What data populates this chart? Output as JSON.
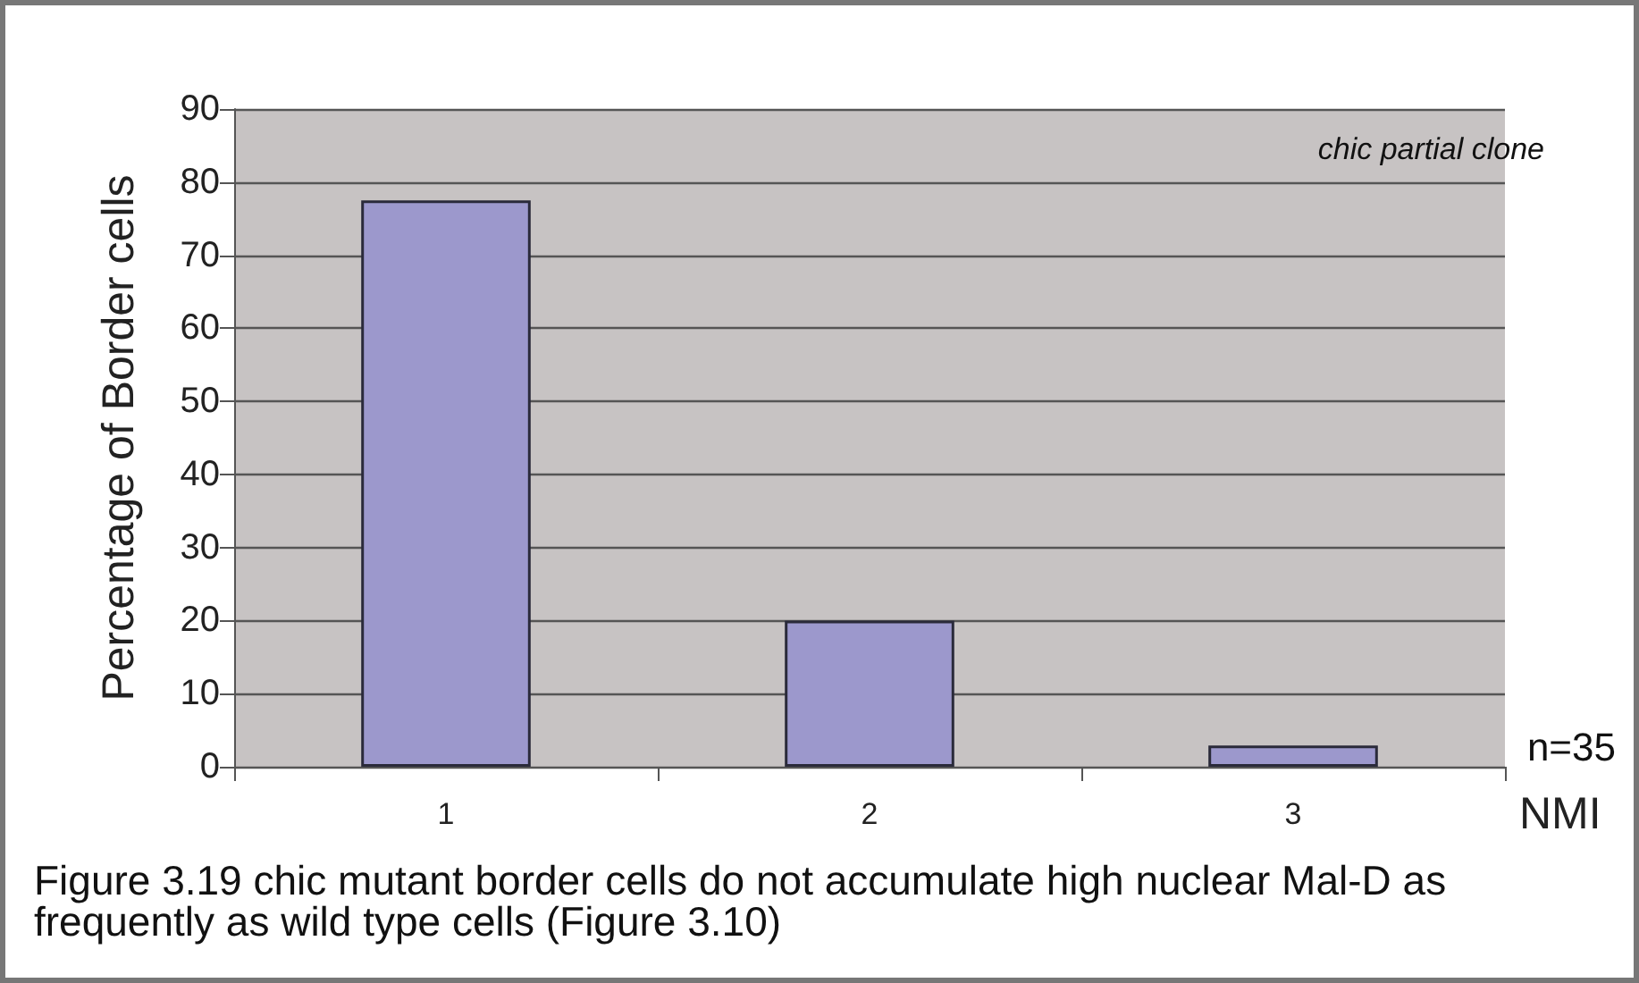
{
  "chart_data": {
    "type": "bar",
    "ylabel": "Percentage of Border cells",
    "xlabel": "NMI",
    "categories": [
      "1",
      "2",
      "3"
    ],
    "values": [
      77.5,
      20,
      2.9
    ],
    "color": "#9c98cc",
    "ylim": [
      0,
      90
    ],
    "yticks": [
      0,
      10,
      20,
      30,
      40,
      50,
      60,
      70,
      80,
      90
    ],
    "grid": "y",
    "annotations": [
      "chic partial clone",
      "n=35",
      "Figure 3.19 chic mutant border cells do not accumulate high nuclear Mal-D as frequently as wild type cells (Figure 3.10)"
    ]
  }
}
